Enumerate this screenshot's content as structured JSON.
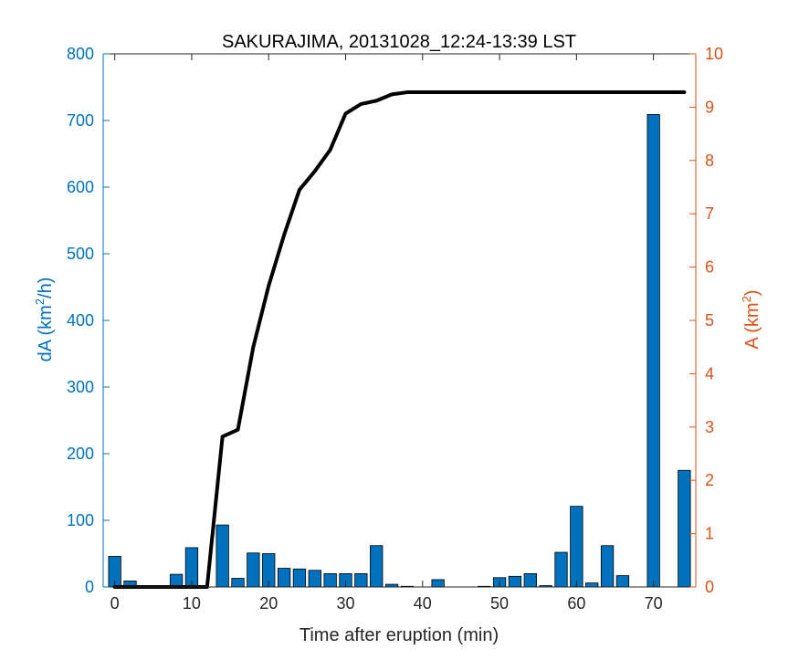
{
  "chart_data": {
    "type": "bar+line",
    "title": "SAKURAJIMA, 20131028_12:24-13:39 LST",
    "xlabel": "Time after eruption (min)",
    "ylabel_left": "dA (km²/h)",
    "ylabel_left_base": "dA (km",
    "ylabel_left_sup": "2",
    "ylabel_left_tail": "/h)",
    "ylabel_right": "A (km²)",
    "ylabel_right_base": "A (km",
    "ylabel_right_sup": "2",
    "ylabel_right_tail": ")",
    "xlim": [
      -1.5,
      75.5
    ],
    "ylim_left": [
      0,
      800
    ],
    "ylim_right": [
      0,
      10
    ],
    "x_ticks": [
      0,
      10,
      20,
      30,
      40,
      50,
      60,
      70
    ],
    "y_left_ticks": [
      0,
      100,
      200,
      300,
      400,
      500,
      600,
      700,
      800
    ],
    "y_right_ticks": [
      0,
      1,
      2,
      3,
      4,
      5,
      6,
      7,
      8,
      9,
      10
    ],
    "grid": false,
    "colors": {
      "bar": "#0072BD",
      "left_axis": "#0072BD",
      "right_axis": "#D95319",
      "line": "#000000",
      "frame": "#262626"
    },
    "series": [
      {
        "axis": "left",
        "type": "bar",
        "x": [
          0,
          2,
          4,
          6,
          8,
          10,
          12,
          14,
          16,
          18,
          20,
          22,
          24,
          26,
          28,
          30,
          32,
          34,
          36,
          38,
          40,
          42,
          44,
          46,
          48,
          50,
          52,
          54,
          56,
          58,
          60,
          62,
          64,
          66,
          68,
          70,
          72,
          74
        ],
        "values": [
          46,
          9,
          1,
          1,
          19,
          59,
          0,
          93,
          13,
          51,
          50,
          28,
          27,
          25,
          20,
          20,
          20,
          62,
          4,
          1,
          0,
          11,
          0,
          0,
          1,
          14,
          16,
          20,
          2,
          52,
          121,
          6,
          62,
          17,
          0,
          709,
          0,
          175
        ]
      },
      {
        "axis": "right",
        "type": "line",
        "x": [
          0,
          2,
          4,
          6,
          8,
          10,
          12,
          14,
          16,
          18,
          20,
          22,
          24,
          26,
          28,
          30,
          32,
          34,
          36,
          38,
          40,
          42,
          44,
          46,
          48,
          50,
          52,
          54,
          56,
          58,
          60,
          62,
          64,
          66,
          68,
          70,
          72,
          74
        ],
        "values": [
          0,
          0,
          0,
          0,
          0,
          0,
          0,
          2.82,
          2.95,
          4.5,
          5.65,
          6.6,
          7.45,
          7.8,
          8.2,
          8.88,
          9.06,
          9.12,
          9.24,
          9.28,
          9.28,
          9.28,
          9.28,
          9.28,
          9.28,
          9.28,
          9.28,
          9.28,
          9.28,
          9.28,
          9.28,
          9.28,
          9.28,
          9.28,
          9.28,
          9.28,
          9.28,
          9.28
        ]
      }
    ]
  }
}
